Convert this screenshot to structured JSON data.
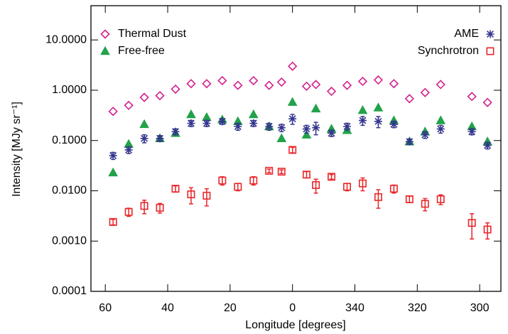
{
  "chart_data": {
    "type": "scatter",
    "xlabel": "Longitude [degrees]",
    "ylabel": "Intensity [MJy sr⁻¹]",
    "x": [
      57.5,
      52.5,
      47.5,
      42.5,
      37.5,
      32.5,
      27.5,
      22.5,
      17.5,
      12.5,
      7.5,
      3.5,
      0,
      -4.5,
      -7.5,
      -12.5,
      -17.5,
      -22.5,
      -27.5,
      -32.5,
      -37.5,
      -42.5,
      -47.5,
      -57.5,
      -62.5
    ],
    "series": [
      {
        "name": "Thermal Dust",
        "color": "#d4208c",
        "marker": "diamond",
        "values": [
          0.38,
          0.5,
          0.72,
          0.78,
          1.05,
          1.35,
          1.35,
          1.55,
          1.25,
          1.55,
          1.25,
          1.45,
          3.0,
          1.2,
          1.3,
          0.95,
          1.25,
          1.5,
          1.6,
          1.35,
          0.68,
          0.9,
          1.3,
          0.75,
          0.57
        ]
      },
      {
        "name": "Free-free",
        "color": "#22a24a",
        "marker": "triangle",
        "values": [
          0.023,
          0.085,
          0.21,
          0.11,
          0.14,
          0.33,
          0.29,
          0.26,
          0.24,
          0.33,
          0.19,
          0.11,
          0.58,
          0.13,
          0.43,
          0.17,
          0.16,
          0.4,
          0.45,
          0.25,
          0.095,
          0.15,
          0.25,
          0.19,
          0.095
        ]
      },
      {
        "name": "AME",
        "color": "#33348e",
        "marker": "asterisk",
        "values": [
          0.05,
          0.065,
          0.11,
          0.11,
          0.15,
          0.22,
          0.22,
          0.24,
          0.19,
          0.22,
          0.19,
          0.18,
          0.27,
          0.17,
          0.18,
          0.14,
          0.19,
          0.25,
          0.24,
          0.21,
          0.095,
          0.13,
          0.17,
          0.15,
          0.08
        ],
        "errors": [
          0.008,
          0.01,
          0.02,
          0.015,
          0.02,
          0.03,
          0.03,
          0.03,
          0.03,
          0.03,
          0.03,
          0.03,
          0.06,
          0.03,
          0.05,
          0.02,
          0.03,
          0.05,
          0.06,
          0.03,
          0.012,
          0.02,
          0.03,
          0.02,
          0.012
        ]
      },
      {
        "name": "Synchrotron",
        "color": "#e8262a",
        "marker": "square",
        "values": [
          0.0024,
          0.0038,
          0.005,
          0.0046,
          0.011,
          0.0085,
          0.008,
          0.016,
          0.012,
          0.016,
          0.025,
          0.024,
          0.065,
          0.021,
          0.013,
          0.019,
          0.012,
          0.014,
          0.0075,
          0.011,
          0.0068,
          0.0055,
          0.0068,
          0.0023,
          0.0017
        ],
        "errors": [
          0.0003,
          0.0007,
          0.0015,
          0.001,
          0.0015,
          0.003,
          0.003,
          0.003,
          0.002,
          0.003,
          0.002,
          0.002,
          0.008,
          0.003,
          0.004,
          0.002,
          0.002,
          0.004,
          0.003,
          0.002,
          0.001,
          0.0015,
          0.0015,
          0.0012,
          0.0006
        ]
      }
    ],
    "xlim": [
      64.6,
      -66.8
    ],
    "xticks": [
      60,
      40,
      20,
      0,
      {
        "value": -20,
        "label": "340"
      },
      {
        "value": -40,
        "label": "320"
      },
      {
        "value": -60,
        "label": "300"
      }
    ],
    "ylim": [
      0.0001,
      48
    ],
    "yscale": "log",
    "yticks": [
      {
        "value": 0.0001,
        "label": "0.0001"
      },
      {
        "value": 0.001,
        "label": "0.0010"
      },
      {
        "value": 0.01,
        "label": "0.0100"
      },
      {
        "value": 0.1,
        "label": "0.1000"
      },
      {
        "value": 1,
        "label": "1.0000"
      },
      {
        "value": 10,
        "label": "10.0000"
      }
    ]
  }
}
